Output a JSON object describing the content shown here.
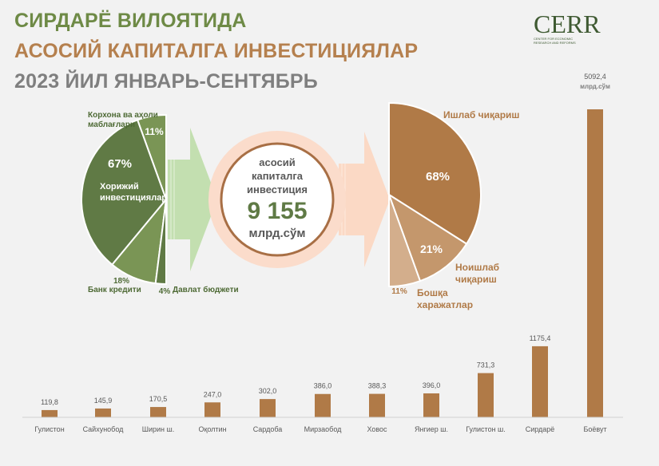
{
  "title": {
    "line1": "СИРДАРЁ ВИЛОЯТИДА",
    "line2": "АСОСИЙ КАПИТАЛГА ИНВЕСТИЦИЯЛАР",
    "line3": "2023 ЙИЛ ЯНВАРЬ-СЕНТЯБРЬ"
  },
  "colors": {
    "green": "#6e8a46",
    "brown": "#b07a47",
    "gray": "#7f7f7f"
  },
  "logo": {
    "text": "CERR",
    "subtitle": "CENTER FOR ECONOMIC RESEARCH AND REFORMS"
  },
  "center": {
    "line1": "асосий",
    "line2": "капиталга",
    "line3": "инвестиция",
    "value": "9 155",
    "unit": "млрд.сўм"
  },
  "chart_data": [
    {
      "type": "pie",
      "variant": "half-pie-left",
      "slices": [
        {
          "label": "Корхона ва аҳоли маблағлари",
          "value": 11,
          "color": "#7a9555"
        },
        {
          "label": "Хорижий инвестициялар",
          "value": 67,
          "color": "#607a45"
        },
        {
          "label": "Банк кредити",
          "value": 18,
          "color": "#7a9555"
        },
        {
          "label": "Давлат бюджети",
          "value": 4,
          "color": "#607a45"
        }
      ]
    },
    {
      "type": "pie",
      "variant": "half-pie-right",
      "slices": [
        {
          "label": "Ишлаб чиқариш",
          "value": 68,
          "color": "#b07a47"
        },
        {
          "label": "Ноишлаб чиқариш",
          "value": 21,
          "color": "#c4976c"
        },
        {
          "label": "Бошқа харажатлар",
          "value": 11,
          "color": "#d3ae8c"
        }
      ]
    },
    {
      "type": "bar",
      "unit": "млрд.сўм",
      "categories": [
        "Гулистон",
        "Сайхунобод",
        "Ширин ш.",
        "Оқолтин",
        "Сардоба",
        "Мирзаобод",
        "Ховос",
        "Янгиер ш.",
        "Гулистон ш.",
        "Сирдарё",
        "Боёвут"
      ],
      "values": [
        119.8,
        145.9,
        170.5,
        247.0,
        302.0,
        386.0,
        388.3,
        396.0,
        731.3,
        1175.4,
        5092.4
      ],
      "value_labels": [
        "119,8",
        "145,9",
        "170,5",
        "247,0",
        "302,0",
        "386,0",
        "388,3",
        "396,0",
        "731,3",
        "1175,4",
        "5092,4"
      ],
      "color": "#b07a47"
    }
  ]
}
